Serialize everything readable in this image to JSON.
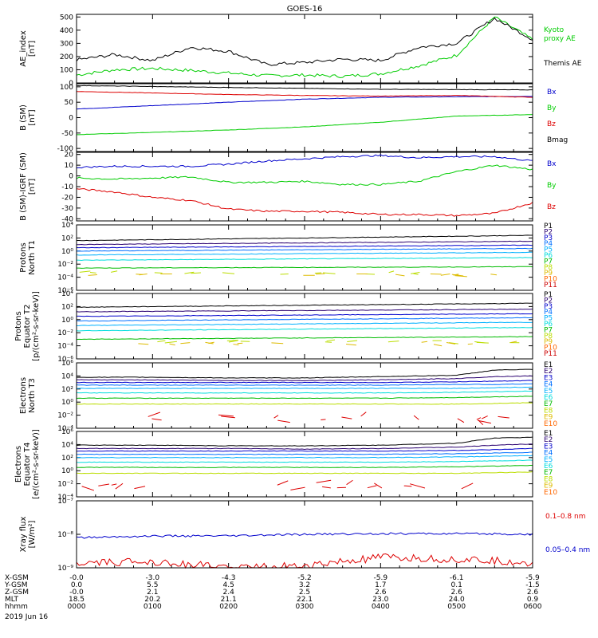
{
  "title": "GOES-16",
  "date": "2019 Jun 16",
  "orbit": {
    "labels": [
      "X-GSM",
      "Y-GSM",
      "Z-GSM",
      "MLT",
      "hhmm"
    ],
    "columns": [
      [
        "-0.0",
        "0.0",
        "-0.0",
        "18.5",
        "0000"
      ],
      [
        "-3.0",
        "5.5",
        "2.1",
        "20.2",
        "0100"
      ],
      [
        "-4.3",
        "4.5",
        "2.4",
        "21.1",
        "0200"
      ],
      [
        "-5.2",
        "3.2",
        "2.5",
        "22.1",
        "0300"
      ],
      [
        "-5.9",
        "1.7",
        "2.6",
        "23.0",
        "0400"
      ],
      [
        "-6.1",
        "0.1",
        "2.6",
        "24.0",
        "0500"
      ],
      [
        "-5.9",
        "-1.5",
        "2.6",
        "0.9",
        "0600"
      ]
    ]
  },
  "colors": {
    "black": "#000000",
    "green": "#00cc00",
    "blue": "#0000cc",
    "red": "#dd0000",
    "p": [
      "#000000",
      "#2a0070",
      "#0000cc",
      "#0070ff",
      "#00b0ff",
      "#00dddd",
      "#00bb00",
      "#bbdd00",
      "#ddbb00",
      "#ff6600",
      "#cc0000"
    ]
  },
  "chart_data": [
    {
      "type": "line",
      "id": "ae",
      "ylabel": "AE_index\n[nT]",
      "ylim": [
        0,
        520
      ],
      "yticks": [
        "0",
        "100",
        "200",
        "300",
        "400",
        "500"
      ],
      "x": [
        0,
        0.5,
        1,
        1.5,
        2,
        2.5,
        3,
        3.5,
        4,
        4.5,
        5,
        5.5,
        6
      ],
      "series": [
        {
          "name": "Kyoto proxy AE",
          "values": [
            60,
            100,
            110,
            95,
            75,
            55,
            60,
            50,
            70,
            130,
            210,
            500,
            330
          ]
        },
        {
          "name": "Themis AE",
          "values": [
            175,
            215,
            170,
            270,
            240,
            140,
            155,
            180,
            170,
            270,
            300,
            490,
            330
          ]
        }
      ],
      "legend": [
        "Kyoto proxy AE",
        "Themis AE"
      ]
    },
    {
      "type": "line",
      "id": "bsm",
      "ylabel": "B (SM)\n[nT]",
      "ylim": [
        -110,
        110
      ],
      "yticks": [
        "-100",
        "-50",
        "0",
        "50",
        "100"
      ],
      "x": [
        0,
        1,
        2,
        3,
        4,
        5,
        6
      ],
      "series": [
        {
          "name": "Bx",
          "values": [
            28,
            39,
            50,
            60,
            66,
            68,
            69
          ]
        },
        {
          "name": "By",
          "values": [
            -55,
            -48,
            -40,
            -30,
            -15,
            5,
            10
          ]
        },
        {
          "name": "Bz",
          "values": [
            85,
            80,
            75,
            72,
            70,
            72,
            66
          ]
        },
        {
          "name": "Bmag",
          "values": [
            104,
            101,
            98,
            95,
            92,
            91,
            90
          ]
        }
      ],
      "legend": [
        "Bx",
        "By",
        "Bz",
        "Bmag"
      ]
    },
    {
      "type": "line",
      "id": "bdiff",
      "ylabel": "B (SM)-IGRF (SM)\n[nT]",
      "ylim": [
        -42,
        22
      ],
      "yticks": [
        "-40",
        "-30",
        "-20",
        "-10",
        "0",
        "10",
        "20"
      ],
      "x": [
        0,
        0.5,
        1,
        1.5,
        2,
        2.5,
        3,
        3.5,
        4,
        4.5,
        5,
        5.5,
        6
      ],
      "series": [
        {
          "name": "Bx",
          "values": [
            8,
            9,
            9,
            9,
            11,
            14,
            16,
            18,
            19,
            17,
            18,
            18,
            14
          ]
        },
        {
          "name": "By",
          "values": [
            -2,
            -3,
            -2,
            -1,
            -6,
            -6,
            -5,
            -8,
            -8,
            -5,
            4,
            10,
            6
          ]
        },
        {
          "name": "Bz",
          "values": [
            -12,
            -15,
            -20,
            -23,
            -31,
            -33,
            -33,
            -34,
            -36,
            -36,
            -37,
            -35,
            -25
          ]
        }
      ],
      "legend": [
        "Bx",
        "By",
        "Bz"
      ]
    },
    {
      "type": "line",
      "id": "pn",
      "ylabel": "Protons\nNorth T1",
      "ylog": [
        -6,
        4
      ],
      "yticks": [
        "10⁴",
        "10²",
        "10⁰",
        "10⁻²",
        "10⁻⁴",
        "10⁻⁶"
      ],
      "x": [
        0,
        6
      ],
      "series": [
        {
          "name": "P1",
          "values": [
            1.6,
            2.4
          ]
        },
        {
          "name": "P2",
          "values": [
            1.0,
            1.5
          ]
        },
        {
          "name": "P3",
          "values": [
            0.5,
            0.9
          ]
        },
        {
          "name": "P4",
          "values": [
            0.0,
            0.4
          ]
        },
        {
          "name": "P5",
          "values": [
            -0.6,
            -0.2
          ]
        },
        {
          "name": "P6",
          "values": [
            -1.4,
            -1.0
          ]
        },
        {
          "name": "P7",
          "values": [
            -2.6,
            -2.4
          ]
        }
      ],
      "legend": [
        "P1",
        "P2",
        "P3",
        "P4",
        "P5",
        "P6",
        "P7",
        "P8",
        "P9",
        "P10",
        "P11"
      ]
    },
    {
      "type": "line",
      "id": "pe",
      "ylabel": "Protons\nEquator T2\n[p/(cm²-s-sr-keV)]",
      "ylog": [
        -6,
        4
      ],
      "yticks": [
        "10⁴",
        "10²",
        "10⁰",
        "10⁻²",
        "10⁻⁴",
        "10⁻⁶"
      ],
      "x": [
        0,
        6
      ],
      "series": [
        {
          "name": "P1",
          "values": [
            1.9,
            2.5
          ]
        },
        {
          "name": "P2",
          "values": [
            1.2,
            1.6
          ]
        },
        {
          "name": "P3",
          "values": [
            0.5,
            0.9
          ]
        },
        {
          "name": "P4",
          "values": [
            -0.2,
            0.3
          ]
        },
        {
          "name": "P5",
          "values": [
            -0.9,
            -0.4
          ]
        },
        {
          "name": "P6",
          "values": [
            -1.7,
            -1.2
          ]
        },
        {
          "name": "P7",
          "values": [
            -3.0,
            -2.6
          ]
        }
      ],
      "legend": [
        "P1",
        "P2",
        "P3",
        "P4",
        "P5",
        "P6",
        "P7",
        "P8",
        "P9",
        "P10",
        "P11"
      ]
    },
    {
      "type": "line",
      "id": "en",
      "ylabel": "Electrons\nNorth T3",
      "ylog": [
        -4,
        6
      ],
      "yticks": [
        "10⁶",
        "10⁴",
        "10²",
        "10⁰",
        "10⁻²",
        "10⁻⁴"
      ],
      "x": [
        0,
        1,
        2,
        3,
        4,
        5,
        5.5,
        6
      ],
      "series": [
        {
          "name": "E1",
          "values": [
            3.8,
            3.8,
            3.7,
            3.7,
            3.9,
            4.1,
            4.9,
            5.0
          ]
        },
        {
          "name": "E2",
          "values": [
            3.4,
            3.4,
            3.3,
            3.3,
            3.4,
            3.6,
            3.9,
            4.0
          ]
        },
        {
          "name": "E3",
          "values": [
            3.0,
            3.0,
            3.0,
            3.0,
            3.0,
            3.1,
            3.2,
            3.3
          ]
        },
        {
          "name": "E4",
          "values": [
            2.6,
            2.6,
            2.6,
            2.6,
            2.6,
            2.7,
            2.7,
            2.8
          ]
        },
        {
          "name": "E5",
          "values": [
            2.1,
            2.1,
            2.1,
            2.1,
            2.1,
            2.1,
            2.2,
            2.3
          ]
        },
        {
          "name": "E6",
          "values": [
            1.4,
            1.4,
            1.4,
            1.4,
            1.4,
            1.5,
            1.6,
            1.7
          ]
        },
        {
          "name": "E7",
          "values": [
            0.6,
            0.6,
            0.6,
            0.6,
            0.6,
            0.7,
            0.8,
            0.9
          ]
        },
        {
          "name": "E8",
          "values": [
            -0.3,
            -0.3,
            -0.3,
            -0.3,
            -0.3,
            -0.3,
            -0.2,
            -0.1
          ]
        }
      ],
      "legend": [
        "E1",
        "E2",
        "E3",
        "E4",
        "E5",
        "E6",
        "E7",
        "E8",
        "E9",
        "E10"
      ]
    },
    {
      "type": "line",
      "id": "ee",
      "ylabel": "Electrons\nEquator T4\n[e/(cm²-s-sr-keV)]",
      "ylog": [
        -4,
        6
      ],
      "yticks": [
        "10⁶",
        "10⁴",
        "10²",
        "10⁰",
        "10⁻²",
        "10⁻⁴"
      ],
      "x": [
        0,
        1,
        2,
        3,
        4,
        5,
        5.5,
        6
      ],
      "series": [
        {
          "name": "E1",
          "values": [
            3.9,
            3.9,
            3.8,
            3.8,
            3.9,
            4.2,
            5.0,
            5.1
          ]
        },
        {
          "name": "E2",
          "values": [
            3.4,
            3.4,
            3.4,
            3.3,
            3.4,
            3.6,
            3.9,
            4.1
          ]
        },
        {
          "name": "E3",
          "values": [
            3.0,
            3.0,
            3.0,
            3.0,
            3.0,
            3.1,
            3.2,
            3.4
          ]
        },
        {
          "name": "E4",
          "values": [
            2.5,
            2.5,
            2.5,
            2.5,
            2.5,
            2.6,
            2.7,
            2.8
          ]
        },
        {
          "name": "E5",
          "values": [
            2.0,
            2.0,
            2.0,
            2.0,
            2.0,
            2.1,
            2.2,
            2.3
          ]
        },
        {
          "name": "E6",
          "values": [
            1.3,
            1.3,
            1.3,
            1.3,
            1.3,
            1.4,
            1.5,
            1.6
          ]
        },
        {
          "name": "E7",
          "values": [
            0.5,
            0.5,
            0.5,
            0.5,
            0.5,
            0.6,
            0.7,
            0.8
          ]
        },
        {
          "name": "E8",
          "values": [
            -0.4,
            -0.4,
            -0.4,
            -0.4,
            -0.4,
            -0.4,
            -0.3,
            -0.2
          ]
        }
      ],
      "legend": [
        "E1",
        "E2",
        "E3",
        "E4",
        "E5",
        "E6",
        "E7",
        "E8",
        "E9",
        "E10"
      ]
    },
    {
      "type": "line",
      "id": "xray",
      "ylabel": "Xray flux\n[W/m²]",
      "ylog": [
        -9,
        -7
      ],
      "yticks": [
        "10⁻⁷",
        "10⁻⁸",
        "10⁻⁹"
      ],
      "x": [
        0,
        1,
        2,
        3,
        4,
        5,
        6
      ],
      "series": [
        {
          "name": "0.1-0.8 nm",
          "values": [
            -8.9,
            -8.8,
            -9.0,
            -8.95,
            -8.7,
            -8.75,
            -8.85
          ]
        },
        {
          "name": "0.05-0.4 nm",
          "values": [
            -8.1,
            -8.05,
            -8.05,
            -8.0,
            -7.98,
            -7.98,
            -8.0
          ]
        }
      ],
      "legend": [
        "0.1–0.8 nm",
        "0.05–0.4 nm"
      ]
    }
  ]
}
